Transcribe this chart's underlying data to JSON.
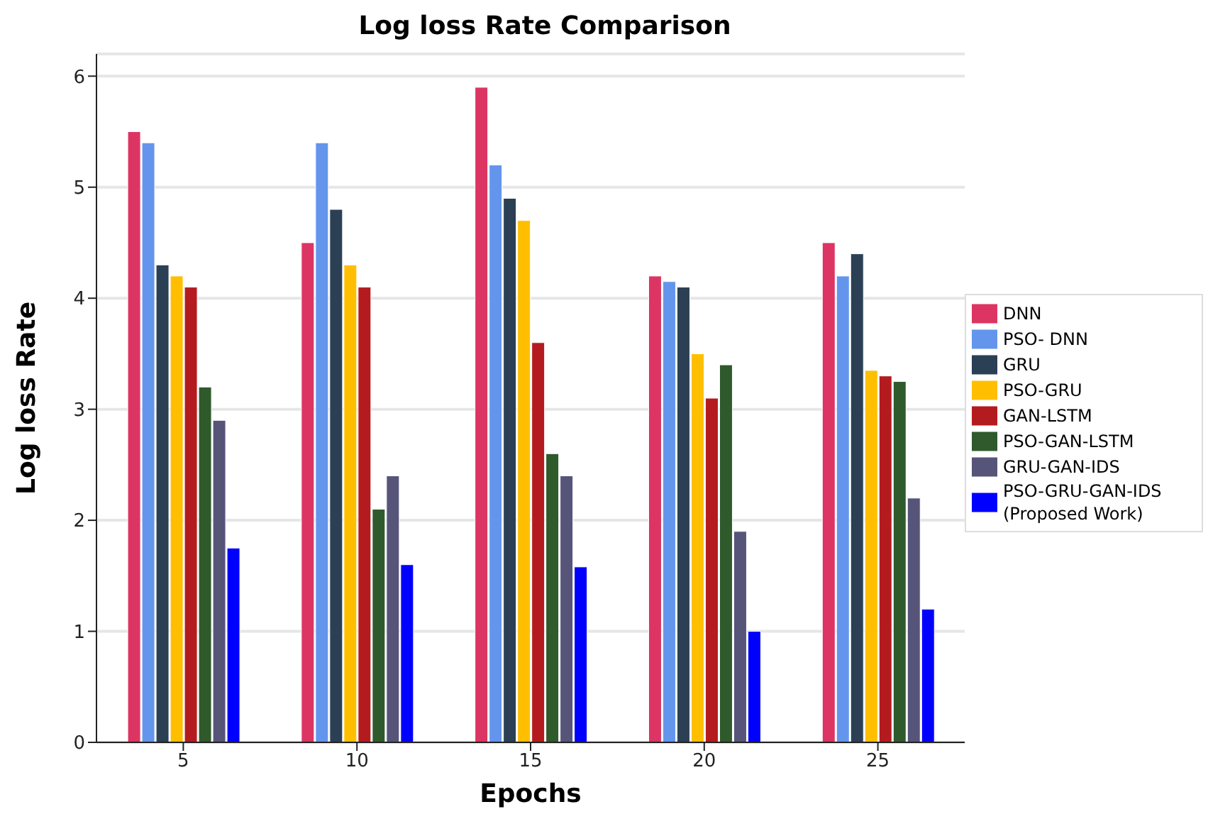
{
  "chart_data": {
    "type": "bar",
    "title": "Log loss Rate Comparison",
    "xlabel": "Epochs",
    "ylabel": "Log loss Rate",
    "categories": [
      "5",
      "10",
      "15",
      "20",
      "25"
    ],
    "series": [
      {
        "name": "DNN",
        "color": "#dc3563",
        "values": [
          5.5,
          4.5,
          5.9,
          4.2,
          4.5
        ]
      },
      {
        "name": "PSO- DNN",
        "color": "#6495ed",
        "values": [
          5.4,
          5.4,
          5.2,
          4.15,
          4.2
        ]
      },
      {
        "name": "GRU",
        "color": "#2b3f55",
        "values": [
          4.3,
          4.8,
          4.9,
          4.1,
          4.4
        ]
      },
      {
        "name": "PSO-GRU",
        "color": "#ffbf00",
        "values": [
          4.2,
          4.3,
          4.7,
          3.5,
          3.35
        ]
      },
      {
        "name": "GAN-LSTM",
        "color": "#b41b1f",
        "values": [
          4.1,
          4.1,
          3.6,
          3.1,
          3.3
        ]
      },
      {
        "name": "PSO-GAN-LSTM",
        "color": "#2f5a2c",
        "values": [
          3.2,
          2.1,
          2.6,
          3.4,
          3.25
        ]
      },
      {
        "name": "GRU-GAN-IDS",
        "color": "#565479",
        "values": [
          2.9,
          2.4,
          2.4,
          1.9,
          2.2
        ]
      },
      {
        "name": "PSO-GRU-GAN-IDS (Proposed Work)",
        "color": "#0000ff",
        "values": [
          1.75,
          1.6,
          1.58,
          1.0,
          1.2
        ]
      }
    ],
    "ylim": [
      0,
      6.2
    ],
    "yticks": [
      0,
      1,
      2,
      3,
      4,
      5,
      6
    ],
    "grid": "y",
    "legend": "right"
  }
}
